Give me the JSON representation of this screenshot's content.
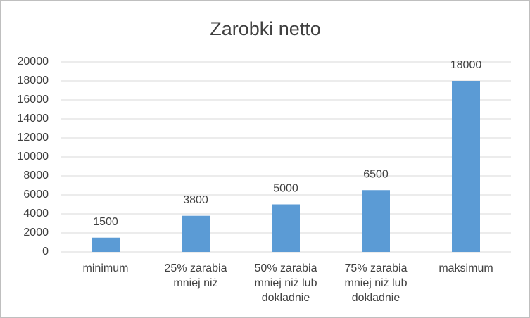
{
  "chart_data": {
    "type": "bar",
    "title": "Zarobki netto",
    "categories": [
      "minimum",
      "25% zarabia mniej niż",
      "50% zarabia mniej niż lub dokładnie",
      "75% zarabia mniej niż lub dokładnie",
      "maksimum"
    ],
    "values": [
      1500,
      3800,
      5000,
      6500,
      18000
    ],
    "color": "#5b9bd5",
    "ylim": [
      0,
      20000
    ],
    "yticks": [
      0,
      2000,
      4000,
      6000,
      8000,
      10000,
      12000,
      14000,
      16000,
      18000,
      20000
    ],
    "grid": true
  }
}
